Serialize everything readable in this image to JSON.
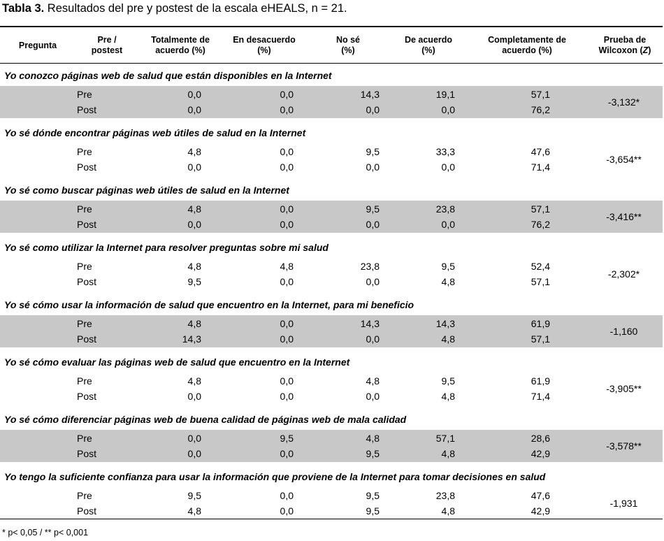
{
  "caption": {
    "bold": "Tabla 3.",
    "text": " Resultados del pre y postest de la escala eHEALS, n = 21."
  },
  "headers": {
    "pregunta": "Pregunta",
    "prepost": [
      "Pre /",
      "postest"
    ],
    "totalmente": [
      "Totalmente de",
      "acuerdo (%)"
    ],
    "desacuerdo": [
      "En desacuerdo",
      "(%)"
    ],
    "nose": [
      "No sé",
      "(%)"
    ],
    "deacuerdo": [
      "De acuerdo",
      "(%)"
    ],
    "completamente": [
      "Completamente de",
      "acuerdo (%)"
    ],
    "wilcoxon_l1": "Prueba de",
    "wilcoxon_l2_pre": "Wilcoxon (",
    "wilcoxon_l2_z": "Z",
    "wilcoxon_l2_post": ")"
  },
  "questions": [
    {
      "title": "Yo conozco páginas web de salud que están disponibles en la Internet",
      "shaded": true,
      "rows": [
        {
          "label": "Pre",
          "values": [
            "0,0",
            "0,0",
            "14,3",
            "19,1",
            "57,1"
          ]
        },
        {
          "label": "Post",
          "values": [
            "0,0",
            "0,0",
            "0,0",
            "0,0",
            "76,2"
          ]
        }
      ],
      "wilcoxon": "-3,132*"
    },
    {
      "title": "Yo sé dónde encontrar  páginas web útiles de salud en la Internet",
      "shaded": false,
      "rows": [
        {
          "label": "Pre",
          "values": [
            "4,8",
            "0,0",
            "9,5",
            "33,3",
            "47,6"
          ]
        },
        {
          "label": "Post",
          "values": [
            "0,0",
            "0,0",
            "0,0",
            "0,0",
            "71,4"
          ]
        }
      ],
      "wilcoxon": "-3,654**"
    },
    {
      "title": "Yo sé como buscar páginas web útiles de salud en la Internet",
      "shaded": true,
      "rows": [
        {
          "label": "Pre",
          "values": [
            "4,8",
            "0,0",
            "9,5",
            "23,8",
            "57,1"
          ]
        },
        {
          "label": "Post",
          "values": [
            "0,0",
            "0,0",
            "0,0",
            "0,0",
            "76,2"
          ]
        }
      ],
      "wilcoxon": "-3,416**"
    },
    {
      "title": "Yo sé como utilizar la Internet para resolver preguntas sobre mi salud",
      "shaded": false,
      "rows": [
        {
          "label": "Pre",
          "values": [
            "4,8",
            "4,8",
            "23,8",
            "9,5",
            "52,4"
          ]
        },
        {
          "label": "Post",
          "values": [
            "9,5",
            "0,0",
            "0,0",
            "4,8",
            "57,1"
          ]
        }
      ],
      "wilcoxon": "-2,302*"
    },
    {
      "title": "Yo sé cómo usar la información de salud que encuentro en la Internet, para mi beneficio",
      "shaded": true,
      "rows": [
        {
          "label": "Pre",
          "values": [
            "4,8",
            "0,0",
            "14,3",
            "14,3",
            "61,9"
          ]
        },
        {
          "label": "Post",
          "values": [
            "14,3",
            "0,0",
            "0,0",
            "4,8",
            "57,1"
          ]
        }
      ],
      "wilcoxon": "-1,160"
    },
    {
      "title": "Yo sé cómo evaluar las páginas web de salud que encuentro en la Internet",
      "shaded": false,
      "rows": [
        {
          "label": "Pre",
          "values": [
            "4,8",
            "0,0",
            "4,8",
            "9,5",
            "61,9"
          ]
        },
        {
          "label": "Post",
          "values": [
            "0,0",
            "0,0",
            "0,0",
            "4,8",
            "71,4"
          ]
        }
      ],
      "wilcoxon": "-3,905**"
    },
    {
      "title": "Yo sé cómo diferenciar páginas web de buena calidad de páginas web de mala calidad",
      "shaded": true,
      "rows": [
        {
          "label": "Pre",
          "values": [
            "0,0",
            "9,5",
            "4,8",
            "57,1",
            "28,6"
          ]
        },
        {
          "label": "Post",
          "values": [
            "0,0",
            "0,0",
            "9,5",
            "4,8",
            "42,9"
          ]
        }
      ],
      "wilcoxon": "-3,578**"
    },
    {
      "title": "Yo tengo la suficiente confianza para usar la información que proviene de la Internet para tomar decisiones en salud",
      "shaded": false,
      "rows": [
        {
          "label": "Pre",
          "values": [
            "9,5",
            "0,0",
            "9,5",
            "23,8",
            "47,6"
          ]
        },
        {
          "label": "Post",
          "values": [
            "4,8",
            "0,0",
            "9,5",
            "4,8",
            "42,9"
          ]
        }
      ],
      "wilcoxon": "-1,931"
    }
  ],
  "footnote": "* p< 0,05 / ** p< 0,001",
  "colors": {
    "band": "#c8c8c8",
    "text": "#000000"
  }
}
